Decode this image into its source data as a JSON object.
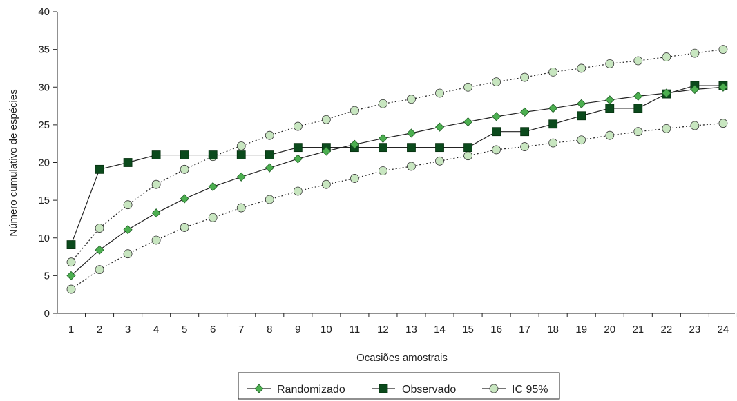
{
  "chart_data": {
    "type": "line",
    "xlabel": "Ocasiões amostrais",
    "ylabel": "Número cumulativo de espécies",
    "x": [
      1,
      2,
      3,
      4,
      5,
      6,
      7,
      8,
      9,
      10,
      11,
      12,
      13,
      14,
      15,
      16,
      17,
      18,
      19,
      20,
      21,
      22,
      23,
      24
    ],
    "xticks": [
      "1",
      "2",
      "3",
      "4",
      "5",
      "6",
      "7",
      "8",
      "9",
      "10",
      "11",
      "12",
      "13",
      "14",
      "15",
      "16",
      "17",
      "18",
      "19",
      "20",
      "21",
      "22",
      "23",
      "24"
    ],
    "ylim": [
      0,
      40
    ],
    "yticks": [
      "0",
      "5",
      "10",
      "15",
      "20",
      "25",
      "30",
      "35",
      "40"
    ],
    "grid": false,
    "legend_position": "bottom",
    "series": [
      {
        "name": "Randomizado",
        "marker": "diamond",
        "line": "solid",
        "values": [
          5.0,
          8.4,
          11.1,
          13.3,
          15.2,
          16.8,
          18.1,
          19.3,
          20.5,
          21.5,
          22.4,
          23.2,
          23.9,
          24.7,
          25.4,
          26.1,
          26.7,
          27.2,
          27.8,
          28.3,
          28.8,
          29.2,
          29.7,
          30.0
        ],
        "color": "#4caf50"
      },
      {
        "name": "Observado",
        "marker": "square",
        "line": "solid",
        "values": [
          9.1,
          19.1,
          20.0,
          21.0,
          21.0,
          21.0,
          21.0,
          21.0,
          22.0,
          22.0,
          22.0,
          22.0,
          22.0,
          22.0,
          22.0,
          24.1,
          24.1,
          25.1,
          26.2,
          27.2,
          27.2,
          29.1,
          30.2,
          30.2
        ],
        "color": "#0b4a1c"
      },
      {
        "name": "IC 95%",
        "marker": "circle",
        "line": "dotted",
        "values_upper": [
          6.8,
          11.3,
          14.4,
          17.1,
          19.1,
          20.8,
          22.2,
          23.6,
          24.8,
          25.7,
          26.9,
          27.8,
          28.4,
          29.2,
          30.0,
          30.7,
          31.3,
          32.0,
          32.5,
          33.1,
          33.5,
          34.0,
          34.5,
          35.0
        ],
        "values_lower": [
          3.2,
          5.8,
          7.9,
          9.7,
          11.4,
          12.7,
          14.0,
          15.1,
          16.2,
          17.1,
          17.9,
          18.9,
          19.5,
          20.2,
          20.9,
          21.7,
          22.1,
          22.6,
          23.0,
          23.6,
          24.1,
          24.5,
          24.9,
          25.2
        ],
        "color": "#c8e6c0"
      }
    ]
  }
}
